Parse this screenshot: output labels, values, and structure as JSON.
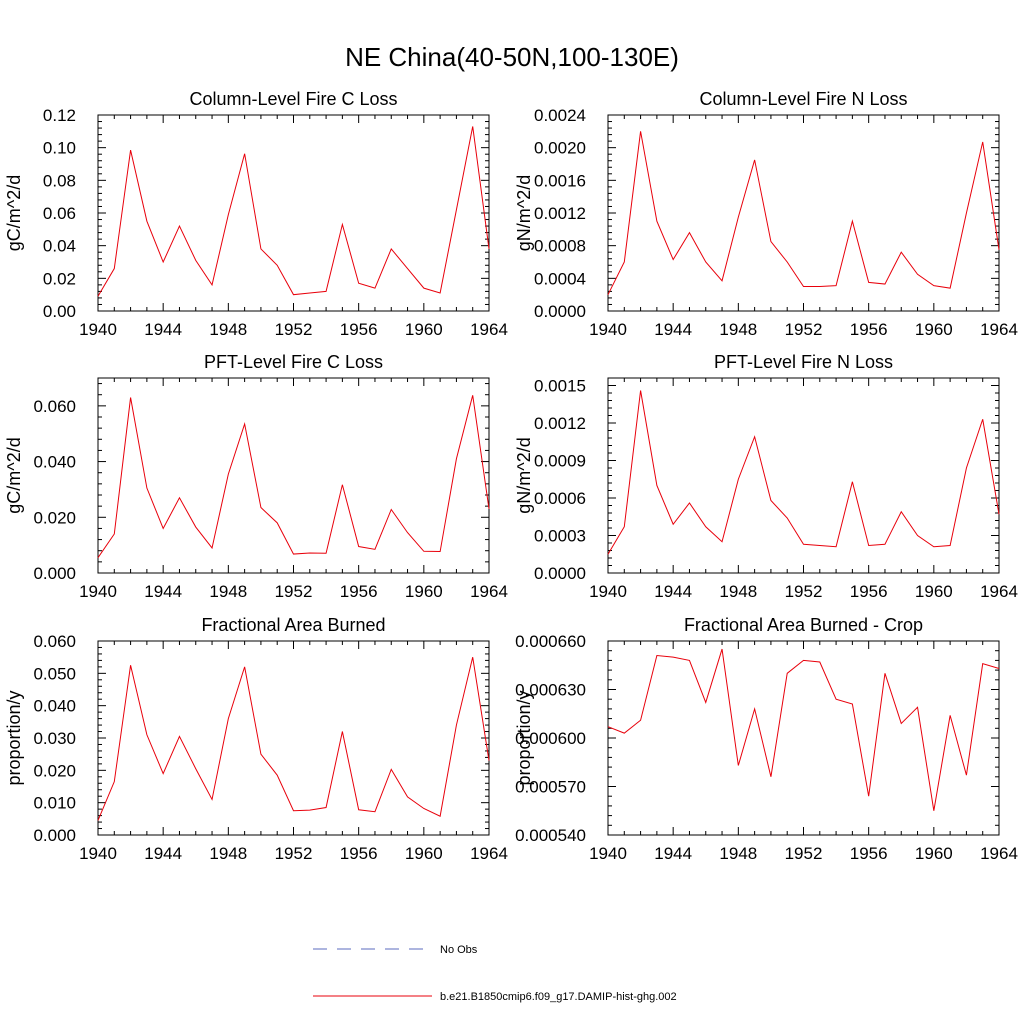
{
  "figure_title": "NE China(40-50N,100-130E)",
  "legend": [
    {
      "label": "No Obs",
      "color": "#5b6bbf",
      "dash": true
    },
    {
      "label": "b.e21.B1850cmip6.f09_g17.DAMIP-hist-ghg.002",
      "color": "#e8000b",
      "dash": false
    }
  ],
  "chart_data": [
    {
      "type": "line",
      "title": "Column-Level Fire C Loss",
      "ylabel": "gC/m^2/d",
      "x": [
        1940,
        1941,
        1942,
        1943,
        1944,
        1945,
        1946,
        1947,
        1948,
        1949,
        1950,
        1951,
        1952,
        1953,
        1954,
        1955,
        1956,
        1957,
        1958,
        1959,
        1960,
        1961,
        1962,
        1963,
        1964
      ],
      "xlim": [
        1940,
        1964
      ],
      "xticks": [
        "1940",
        "1944",
        "1948",
        "1952",
        "1956",
        "1960",
        "1964"
      ],
      "ylim": [
        0,
        0.12
      ],
      "yticks": [
        "0.00",
        "0.02",
        "0.04",
        "0.06",
        "0.08",
        "0.10",
        "0.12"
      ],
      "series": [
        {
          "color": "#e8000b",
          "values": [
            0.009,
            0.026,
            0.0985,
            0.055,
            0.03,
            0.052,
            0.031,
            0.016,
            0.059,
            0.0963,
            0.038,
            0.028,
            0.01,
            0.011,
            0.012,
            0.053,
            0.017,
            0.014,
            0.038,
            0.026,
            0.014,
            0.011,
            0.062,
            0.113,
            0.038
          ]
        }
      ]
    },
    {
      "type": "line",
      "title": "Column-Level Fire N Loss",
      "ylabel": "gN/m^2/d",
      "x": [
        1940,
        1941,
        1942,
        1943,
        1944,
        1945,
        1946,
        1947,
        1948,
        1949,
        1950,
        1951,
        1952,
        1953,
        1954,
        1955,
        1956,
        1957,
        1958,
        1959,
        1960,
        1961,
        1962,
        1963,
        1964
      ],
      "xlim": [
        1940,
        1964
      ],
      "xticks": [
        "1940",
        "1944",
        "1948",
        "1952",
        "1956",
        "1960",
        "1964"
      ],
      "ylim": [
        0,
        0.0024
      ],
      "yticks": [
        "0.0000",
        "0.0004",
        "0.0008",
        "0.0012",
        "0.0016",
        "0.0020",
        "0.0024"
      ],
      "series": [
        {
          "color": "#e8000b",
          "values": [
            0.0002,
            0.0006,
            0.0022,
            0.0011,
            0.00063,
            0.00096,
            0.0006,
            0.00037,
            0.00115,
            0.00185,
            0.00085,
            0.0006,
            0.0003,
            0.0003,
            0.00031,
            0.0011,
            0.00035,
            0.00033,
            0.00072,
            0.00045,
            0.00031,
            0.00028,
            0.0012,
            0.00207,
            0.00075
          ]
        }
      ]
    },
    {
      "type": "line",
      "title": "PFT-Level Fire C Loss",
      "ylabel": "gC/m^2/d",
      "x": [
        1940,
        1941,
        1942,
        1943,
        1944,
        1945,
        1946,
        1947,
        1948,
        1949,
        1950,
        1951,
        1952,
        1953,
        1954,
        1955,
        1956,
        1957,
        1958,
        1959,
        1960,
        1961,
        1962,
        1963,
        1964
      ],
      "xlim": [
        1940,
        1964
      ],
      "xticks": [
        "1940",
        "1944",
        "1948",
        "1952",
        "1956",
        "1960",
        "1964"
      ],
      "ylim": [
        0,
        0.07
      ],
      "yticks": [
        "0.000",
        "0.020",
        "0.040",
        "0.060"
      ],
      "yticks_values": [
        0,
        0.02,
        0.04,
        0.06
      ],
      "series": [
        {
          "color": "#e8000b",
          "values": [
            0.0055,
            0.014,
            0.063,
            0.0305,
            0.016,
            0.027,
            0.0165,
            0.009,
            0.0355,
            0.0535,
            0.0235,
            0.018,
            0.0068,
            0.0072,
            0.0071,
            0.0317,
            0.0095,
            0.0085,
            0.0228,
            0.0145,
            0.0078,
            0.0077,
            0.041,
            0.0638,
            0.023
          ]
        }
      ]
    },
    {
      "type": "line",
      "title": "PFT-Level Fire N Loss",
      "ylabel": "gN/m^2/d",
      "x": [
        1940,
        1941,
        1942,
        1943,
        1944,
        1945,
        1946,
        1947,
        1948,
        1949,
        1950,
        1951,
        1952,
        1953,
        1954,
        1955,
        1956,
        1957,
        1958,
        1959,
        1960,
        1961,
        1962,
        1963,
        1964
      ],
      "xlim": [
        1940,
        1964
      ],
      "xticks": [
        "1940",
        "1944",
        "1948",
        "1952",
        "1956",
        "1960",
        "1964"
      ],
      "ylim": [
        0,
        0.00156
      ],
      "yticks": [
        "0.0000",
        "0.0003",
        "0.0006",
        "0.0009",
        "0.0012",
        "0.0015"
      ],
      "yticks_values": [
        0,
        0.0003,
        0.0006,
        0.0009,
        0.0012,
        0.0015
      ],
      "series": [
        {
          "color": "#e8000b",
          "values": [
            0.00015,
            0.00037,
            0.00146,
            0.0007,
            0.00039,
            0.00056,
            0.00037,
            0.00025,
            0.00075,
            0.00109,
            0.00058,
            0.00044,
            0.00023,
            0.00022,
            0.00021,
            0.00073,
            0.00022,
            0.00023,
            0.00049,
            0.0003,
            0.00021,
            0.00022,
            0.00084,
            0.00123,
            0.00047
          ]
        }
      ]
    },
    {
      "type": "line",
      "title": "Fractional Area Burned",
      "ylabel": "proportion/y",
      "x": [
        1940,
        1941,
        1942,
        1943,
        1944,
        1945,
        1946,
        1947,
        1948,
        1949,
        1950,
        1951,
        1952,
        1953,
        1954,
        1955,
        1956,
        1957,
        1958,
        1959,
        1960,
        1961,
        1962,
        1963,
        1964
      ],
      "xlim": [
        1940,
        1964
      ],
      "xticks": [
        "1940",
        "1944",
        "1948",
        "1952",
        "1956",
        "1960",
        "1964"
      ],
      "ylim": [
        0,
        0.06
      ],
      "yticks": [
        "0.000",
        "0.010",
        "0.020",
        "0.030",
        "0.040",
        "0.050",
        "0.060"
      ],
      "series": [
        {
          "color": "#e8000b",
          "values": [
            0.0045,
            0.0165,
            0.0525,
            0.031,
            0.019,
            0.0305,
            0.0205,
            0.011,
            0.036,
            0.052,
            0.025,
            0.0185,
            0.0075,
            0.0077,
            0.0085,
            0.032,
            0.0078,
            0.0072,
            0.0203,
            0.0118,
            0.0082,
            0.0058,
            0.034,
            0.055,
            0.023
          ]
        }
      ]
    },
    {
      "type": "line",
      "title": "Fractional Area Burned - Crop",
      "ylabel": "proportion/y",
      "x": [
        1940,
        1941,
        1942,
        1943,
        1944,
        1945,
        1946,
        1947,
        1948,
        1949,
        1950,
        1951,
        1952,
        1953,
        1954,
        1955,
        1956,
        1957,
        1958,
        1959,
        1960,
        1961,
        1962,
        1963,
        1964
      ],
      "xlim": [
        1940,
        1964
      ],
      "xticks": [
        "1940",
        "1944",
        "1948",
        "1952",
        "1956",
        "1960",
        "1964"
      ],
      "ylim": [
        0.00054,
        0.00066
      ],
      "yticks": [
        "0.000540",
        "0.000570",
        "0.000600",
        "0.000630",
        "0.000660"
      ],
      "series": [
        {
          "color": "#e8000b",
          "values": [
            0.000607,
            0.000603,
            0.000611,
            0.000651,
            0.00065,
            0.000648,
            0.000622,
            0.000655,
            0.000583,
            0.000618,
            0.000576,
            0.00064,
            0.000648,
            0.000647,
            0.000624,
            0.000621,
            0.000564,
            0.00064,
            0.000609,
            0.000619,
            0.000555,
            0.000614,
            0.000577,
            0.000646,
            0.000643
          ]
        }
      ]
    }
  ]
}
